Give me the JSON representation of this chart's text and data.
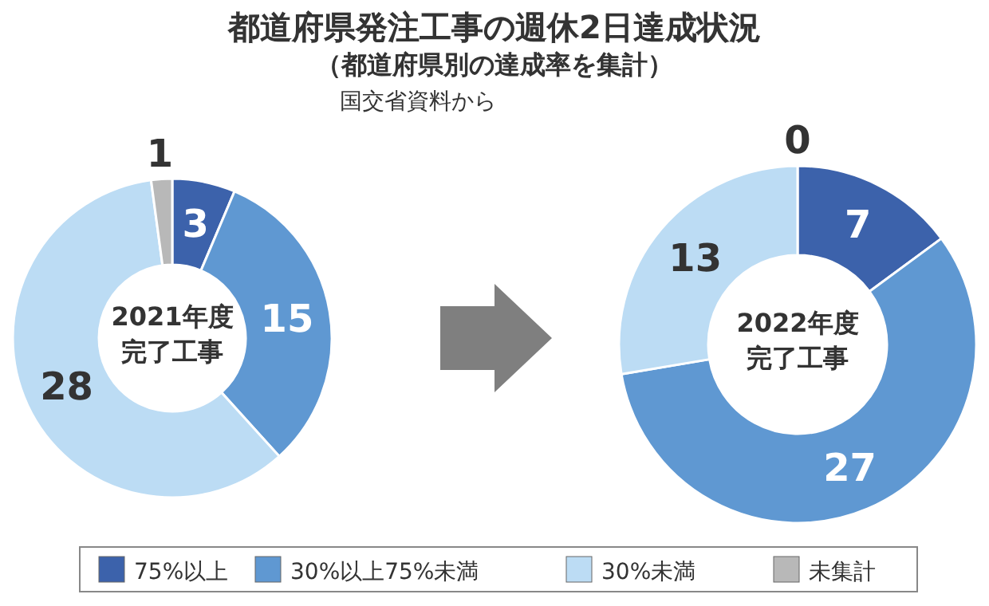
{
  "chart_data": [
    {
      "type": "other",
      "title": "都道府県発注工事の週休2日達成状況",
      "subtitle": "（都道府県別の達成率を集計）",
      "annotations": [
        "国交省資料から"
      ]
    },
    {
      "type": "donut",
      "title": "2021年度完了工事",
      "categories": [
        "75%以上",
        "30%以上75%未満",
        "30%未満",
        "未集計"
      ],
      "values": [
        3,
        15,
        28,
        1
      ],
      "colors": [
        "#3c62ab",
        "#5f98d2",
        "#bcdcf4",
        "#b8b8b8"
      ],
      "data_labels": true,
      "legend": "bottom"
    },
    {
      "type": "donut",
      "title": "2022年度完了工事",
      "categories": [
        null,
        null,
        null,
        null
      ],
      "values": [
        7,
        27,
        13,
        0
      ],
      "value_labels": [
        "7",
        "27",
        "13",
        "0"
      ],
      "colors": [
        "#3c62ab",
        "#5f98d2",
        "#bcdcf4",
        "#b8b8b8"
      ]
    }
  ]
}
